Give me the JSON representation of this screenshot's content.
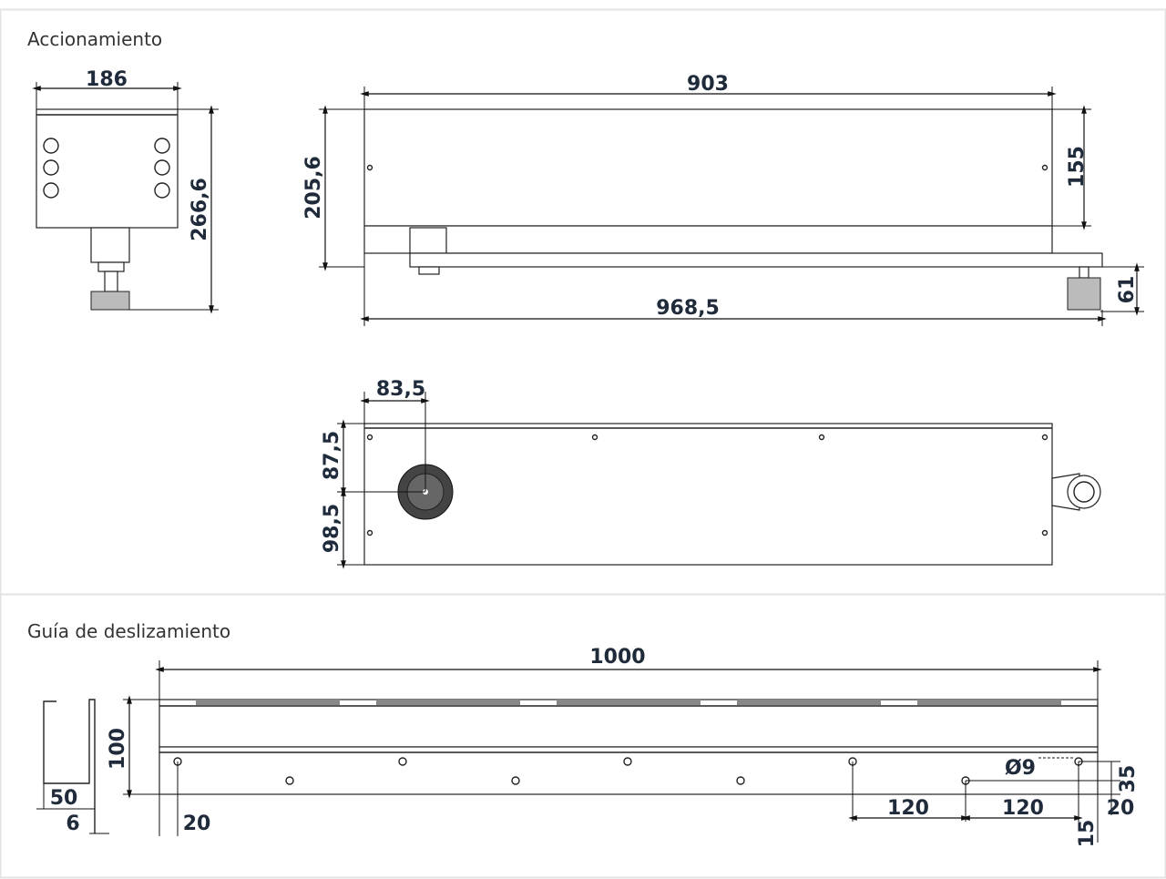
{
  "sections": [
    {
      "title": "Accionamiento",
      "dimensions": [
        "186",
        "266,6",
        "903",
        "205,6",
        "155",
        "968,5",
        "61",
        "83,5",
        "87,5",
        "98,5"
      ]
    },
    {
      "title": "Guía de deslizamiento",
      "dimensions": [
        "1000",
        "100",
        "50",
        "6",
        "20",
        "Ø9",
        "35",
        "120",
        "120",
        "20",
        "15"
      ]
    }
  ]
}
